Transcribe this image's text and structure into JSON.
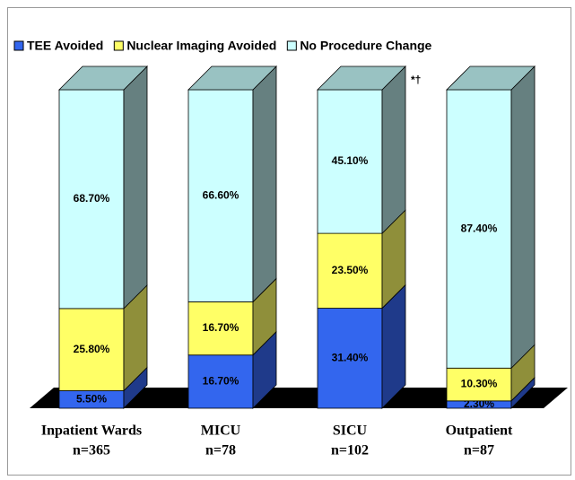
{
  "chart_data": {
    "type": "stacked_bar_3d",
    "categories": [
      "Inpatient Wards",
      "MICU",
      "SICU",
      "Outpatient"
    ],
    "sample_sizes": [
      "n=365",
      "n=78",
      "n=102",
      "n=87"
    ],
    "ylim": [
      0,
      100
    ],
    "legend": "top",
    "annotations": [
      {
        "text": "*†",
        "category": 2
      }
    ],
    "series": [
      {
        "name": "TEE Avoided",
        "color": "#3366ee",
        "side_color": "#1f3a8a",
        "values": [
          5.5,
          16.7,
          31.4,
          2.3
        ],
        "value_labels": [
          "5.50%",
          "16.70%",
          "31.40%",
          "2.30%"
        ]
      },
      {
        "name": "Nuclear Imaging Avoided",
        "color": "#ffff66",
        "side_color": "#8f8f3a",
        "values": [
          25.8,
          16.7,
          23.5,
          10.3
        ],
        "value_labels": [
          "25.80%",
          "16.70%",
          "23.50%",
          "10.30%"
        ]
      },
      {
        "name": "No Procedure Change",
        "color": "#ccffff",
        "side_color": "#668080",
        "top_color": "#99c2c2",
        "values": [
          68.7,
          66.6,
          45.1,
          87.4
        ],
        "value_labels": [
          "68.70%",
          "66.60%",
          "45.10%",
          "87.40%"
        ]
      }
    ]
  }
}
